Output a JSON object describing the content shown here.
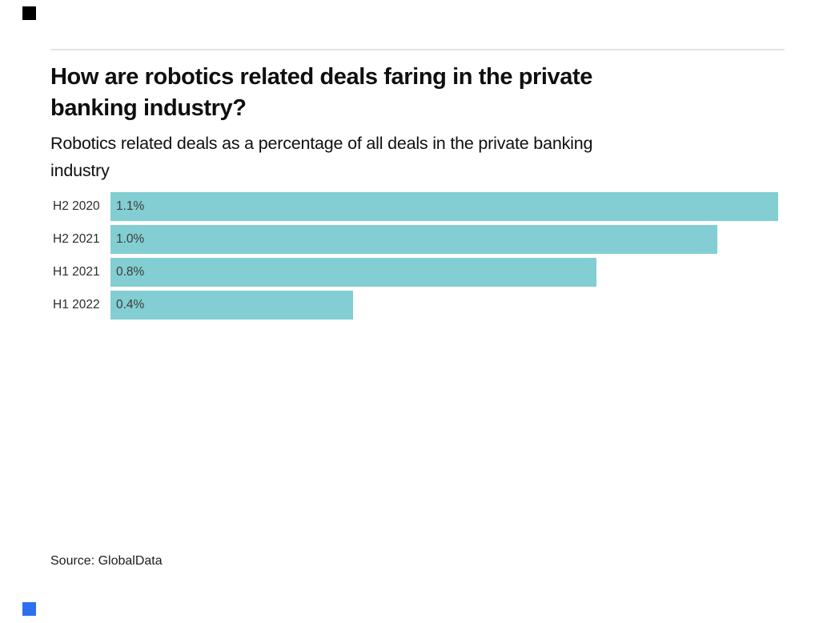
{
  "branding": {
    "top_square_color": "#000000",
    "bottom_square_color": "#2d6ff0"
  },
  "header": {
    "title_lines": [
      "How are robotics related deals faring in the private",
      "banking industry?"
    ],
    "subtitle_lines": [
      "Robotics related deals as a percentage of all deals in the private banking",
      "industry"
    ]
  },
  "source": {
    "label": "Source: GlobalData"
  },
  "colors": {
    "bar": "#82ced2",
    "value_text": "#3c3c3c",
    "category_text": "#2c2c2c",
    "divider": "#e4e4e4"
  },
  "chart_data": {
    "type": "bar",
    "orientation": "horizontal",
    "title": "How are robotics related deals faring in the private banking industry?",
    "subtitle": "Robotics related deals as a percentage of all deals in the private banking industry",
    "categories": [
      "H2 2020",
      "H2 2021",
      "H1 2021",
      "H1 2022"
    ],
    "values": [
      1.1,
      1.0,
      0.8,
      0.4
    ],
    "value_labels": [
      "1.1%",
      "1.0%",
      "0.8%",
      "0.4%"
    ],
    "xlabel": "",
    "ylabel": "",
    "xlim": [
      0,
      1.1
    ],
    "grid": false,
    "legend": false,
    "bar_color": "#82ced2",
    "source": "Source: GlobalData"
  }
}
